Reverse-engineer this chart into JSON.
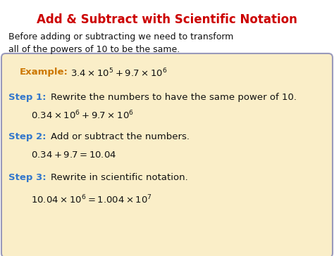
{
  "title": "Add & Subtract with Scientific Notation",
  "title_color": "#cc0000",
  "bg_color": "#ffffff",
  "box_bg_color": "#faeec8",
  "box_border_color": "#9999bb",
  "intro_line1": "Before adding or subtracting we need to transform",
  "intro_line2": "all of the powers of 10 to be the same.",
  "intro_color": "#111111",
  "example_label": "Example:",
  "example_label_color": "#cc7700",
  "example_math": "$3.4 \\times 10^5 + 9.7 \\times 10^6$",
  "example_math_color": "#111111",
  "step1_label": "Step 1:",
  "step1_label_color": "#3377cc",
  "step1_text": "Rewrite the numbers to have the same power of 10.",
  "step1_math": "$0.34 \\times 10^6 + 9.7 \\times 10^6$",
  "step2_label": "Step 2:",
  "step2_label_color": "#3377cc",
  "step2_text": "Add or subtract the numbers.",
  "step2_math": "$0.34 + 9.7 = 10.04$",
  "step3_label": "Step 3:",
  "step3_label_color": "#3377cc",
  "step3_text": "Rewrite in scientific notation.",
  "step3_math": "$10.04 \\times 10^6 = 1.004 \\times 10^7$",
  "text_color": "#111111",
  "figsize": [
    4.74,
    3.64
  ],
  "dpi": 100
}
